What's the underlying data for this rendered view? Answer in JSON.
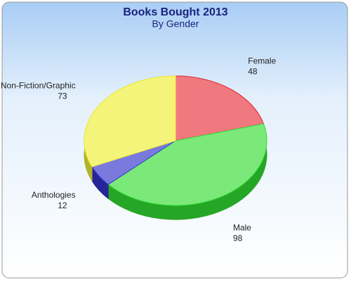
{
  "chart_data": {
    "type": "pie",
    "title": "Books Bought 2013",
    "subtitle": "By Gender",
    "categories": [
      "Female",
      "Male",
      "Anthologies",
      "Non-Fiction/Graphic"
    ],
    "values": [
      48,
      98,
      12,
      73
    ],
    "colors": [
      "#e8303a",
      "#33dd33",
      "#3333cc",
      "#eeee33"
    ]
  }
}
